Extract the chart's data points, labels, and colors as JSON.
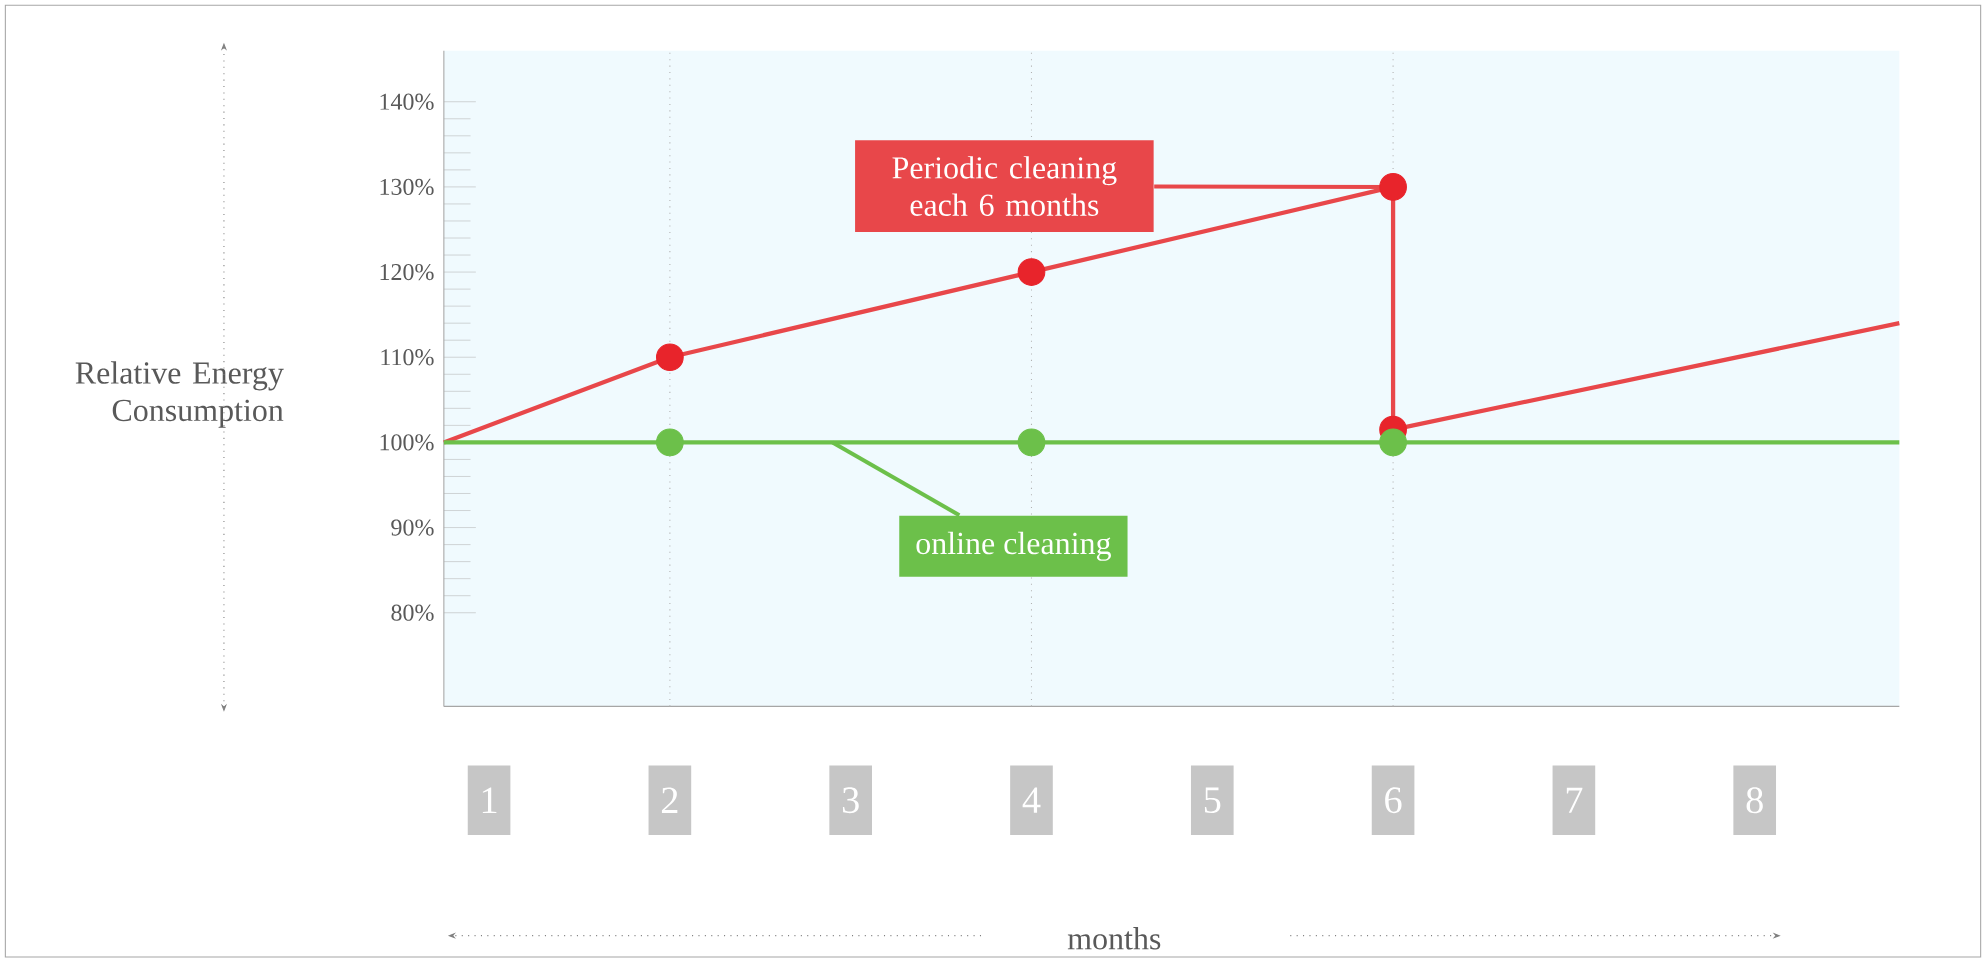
{
  "chart_data": {
    "type": "line",
    "ylabel": "Relative Energy Consumption",
    "xlabel": "months",
    "xlim": [
      0.75,
      8.8
    ],
    "xticks": [
      1,
      2,
      3,
      4,
      5,
      6,
      7,
      8
    ],
    "ylim": [
      69,
      146
    ],
    "yticks": [
      {
        "value": 80,
        "label": "80%"
      },
      {
        "value": 90,
        "label": "90%"
      },
      {
        "value": 100,
        "label": "100%"
      },
      {
        "value": 110,
        "label": "110%"
      },
      {
        "value": 120,
        "label": "120%"
      },
      {
        "value": 130,
        "label": "130%"
      },
      {
        "value": 140,
        "label": "140%"
      }
    ],
    "series": [
      {
        "color": "#e8474a",
        "x": [
          0.75,
          2,
          4,
          6,
          6,
          8.8
        ],
        "values": [
          100,
          110,
          120,
          130,
          101.5,
          114
        ]
      },
      {
        "color": "#6cc04a",
        "x": [
          0.75,
          8.8
        ],
        "values": [
          100,
          100
        ]
      },
      {
        "type": "scatter",
        "marker": "circle",
        "color": "#e8242b",
        "x": [
          2,
          4,
          6,
          6
        ],
        "values": [
          110,
          120,
          130,
          101.5
        ]
      },
      {
        "type": "scatter",
        "marker": "circle",
        "color": "#6cc04a",
        "x": [
          2,
          4,
          6
        ],
        "values": [
          100,
          100,
          100
        ]
      }
    ],
    "ref_lines": [
      {
        "axis": "x",
        "value": 2,
        "line_style": "dotted"
      },
      {
        "axis": "x",
        "value": 4,
        "line_style": "dotted"
      },
      {
        "axis": "x",
        "value": 6,
        "line_style": "dotted"
      }
    ],
    "annotations": [
      {
        "text": "Periodic cleaning each 6 months",
        "x": 6,
        "y": 130
      },
      {
        "text": "online cleaning",
        "x": 2.9,
        "y": 100
      }
    ]
  }
}
